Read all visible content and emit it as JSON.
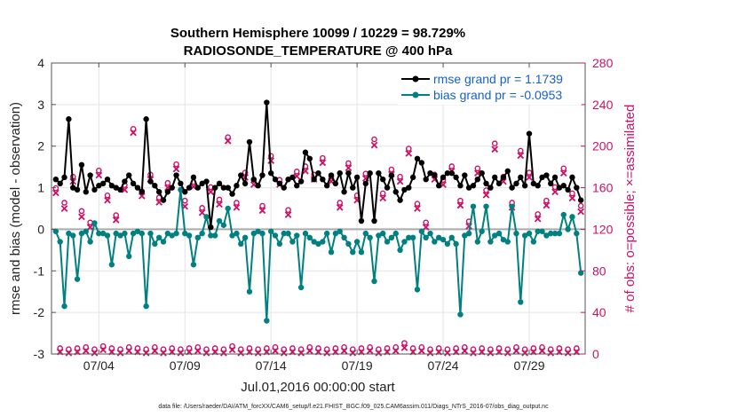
{
  "chart_data": {
    "type": "line",
    "title": "Southern Hemisphere 10099 / 10229 = 98.729%",
    "subtitle": "RADIOSONDE_TEMPERATURE @ 400 hPa",
    "xlabel": "Jul.01,2016 00:00:00 start",
    "ylabel": "rmse and bias (model - observation)",
    "ylabel_right": "# of obs: o=possible; ×=assimilated",
    "footer": "data file: /Users/raeder/DAI/ATM_forcXX/CAM6_setup/f.e21.FHIST_BGC.f09_025.CAM6assim.011/Diags_NTrS_2016-07/obs_diag_output.nc",
    "xlim": [
      0.75,
      31.75
    ],
    "ylim": [
      -3,
      4
    ],
    "ylim_right": [
      0,
      280
    ],
    "x_ticks": [
      3.5,
      8.5,
      13.5,
      18.5,
      23.5,
      28.5
    ],
    "x_tick_labels": [
      "07/04",
      "07/09",
      "07/14",
      "07/19",
      "07/24",
      "07/29"
    ],
    "y_ticks": [
      -3,
      -2,
      -1,
      0,
      1,
      2,
      3,
      4
    ],
    "y_ticks_right": [
      0,
      40,
      80,
      120,
      160,
      200,
      240,
      280
    ],
    "grid": true,
    "legend_position": "top-right",
    "colors": {
      "rmse": "#000000",
      "bias": "#008080",
      "obs": "#cc1166",
      "zero": "#aaaaaa"
    },
    "series": [
      {
        "name": "rmse grand pr = 1.1739",
        "axis": "left",
        "x": [
          1.0,
          1.25,
          1.5,
          1.75,
          2.0,
          2.25,
          2.5,
          2.75,
          3.0,
          3.25,
          3.5,
          3.75,
          4.0,
          4.25,
          4.5,
          4.75,
          5.0,
          5.25,
          5.5,
          5.75,
          6.0,
          6.25,
          6.5,
          6.75,
          7.0,
          7.25,
          7.5,
          7.75,
          8.0,
          8.25,
          8.5,
          8.75,
          9.0,
          9.25,
          9.5,
          9.75,
          10.0,
          10.25,
          10.5,
          10.75,
          11.0,
          11.25,
          11.5,
          11.75,
          12.0,
          12.25,
          12.5,
          12.75,
          13.0,
          13.25,
          13.5,
          13.75,
          14.0,
          14.25,
          14.5,
          14.75,
          15.0,
          15.25,
          15.5,
          15.75,
          16.0,
          16.25,
          16.5,
          16.75,
          17.0,
          17.25,
          17.5,
          17.75,
          18.0,
          18.25,
          18.5,
          18.75,
          19.0,
          19.25,
          19.5,
          19.75,
          20.0,
          20.25,
          20.5,
          20.75,
          21.0,
          21.25,
          21.5,
          21.75,
          22.0,
          22.25,
          22.5,
          22.75,
          23.0,
          23.25,
          23.5,
          23.75,
          24.0,
          24.25,
          24.5,
          24.75,
          25.0,
          25.25,
          25.5,
          25.75,
          26.0,
          26.25,
          26.5,
          26.75,
          27.0,
          27.25,
          27.5,
          27.75,
          28.0,
          28.25,
          28.5,
          28.75,
          29.0,
          29.25,
          29.5,
          29.75,
          30.0,
          30.25,
          30.5,
          30.75,
          31.0,
          31.25,
          31.5
        ],
        "values": [
          1.2,
          1.1,
          1.25,
          2.65,
          1.0,
          0.95,
          1.55,
          0.9,
          1.3,
          0.95,
          1.05,
          1.1,
          1.2,
          1.05,
          1.0,
          0.95,
          1.15,
          1.3,
          1.1,
          1.0,
          0.9,
          2.65,
          1.15,
          1.05,
          0.9,
          0.7,
          0.9,
          1.0,
          1.3,
          1.1,
          0.9,
          1.0,
          1.25,
          1.0,
          1.1,
          1.15,
          0.05,
          1.0,
          1.1,
          1.0,
          1.0,
          0.85,
          1.05,
          1.3,
          1.1,
          2.1,
          1.2,
          1.05,
          1.3,
          3.05,
          1.35,
          1.2,
          1.1,
          1.0,
          1.2,
          1.25,
          1.05,
          1.15,
          1.85,
          1.7,
          1.2,
          1.35,
          1.2,
          1.05,
          1.3,
          1.1,
          1.35,
          0.9,
          1.35,
          1.0,
          1.25,
          0.2,
          1.1,
          1.35,
          0.2,
          1.35,
          1.2,
          1.0,
          1.3,
          0.9,
          0.7,
          0.95,
          1.0,
          1.25,
          1.7,
          1.6,
          1.2,
          1.35,
          1.3,
          1.05,
          1.25,
          1.35,
          1.35,
          1.25,
          1.05,
          1.3,
          1.0,
          1.05,
          1.2,
          1.35,
          1.1,
          1.0,
          1.25,
          1.1,
          1.25,
          1.4,
          1.0,
          1.1,
          1.25,
          1.05,
          2.3,
          1.1,
          1.05,
          1.25,
          1.3,
          1.1,
          1.25,
          1.0,
          1.05,
          0.95,
          1.25,
          1.0,
          0.7
        ]
      },
      {
        "name": "bias grand pr = -0.0953",
        "axis": "left",
        "x": [
          1.0,
          1.25,
          1.5,
          1.75,
          2.0,
          2.25,
          2.5,
          2.75,
          3.0,
          3.25,
          3.5,
          3.75,
          4.0,
          4.25,
          4.5,
          4.75,
          5.0,
          5.25,
          5.5,
          5.75,
          6.0,
          6.25,
          6.5,
          6.75,
          7.0,
          7.25,
          7.5,
          7.75,
          8.0,
          8.25,
          8.5,
          8.75,
          9.0,
          9.25,
          9.5,
          9.75,
          10.0,
          10.25,
          10.5,
          10.75,
          11.0,
          11.25,
          11.5,
          11.75,
          12.0,
          12.25,
          12.5,
          12.75,
          13.0,
          13.25,
          13.5,
          13.75,
          14.0,
          14.25,
          14.5,
          14.75,
          15.0,
          15.25,
          15.5,
          15.75,
          16.0,
          16.25,
          16.5,
          16.75,
          17.0,
          17.25,
          17.5,
          17.75,
          18.0,
          18.25,
          18.5,
          18.75,
          19.0,
          19.25,
          19.5,
          19.75,
          20.0,
          20.25,
          20.5,
          20.75,
          21.0,
          21.25,
          21.5,
          21.75,
          22.0,
          22.25,
          22.5,
          22.75,
          23.0,
          23.25,
          23.5,
          23.75,
          24.0,
          24.25,
          24.5,
          24.75,
          25.0,
          25.25,
          25.5,
          25.75,
          26.0,
          26.25,
          26.5,
          26.75,
          27.0,
          27.25,
          27.5,
          27.75,
          28.0,
          28.25,
          28.5,
          28.75,
          29.0,
          29.25,
          29.5,
          29.75,
          30.0,
          30.25,
          30.5,
          30.75,
          31.0,
          31.25,
          31.5
        ],
        "values": [
          -0.05,
          -0.3,
          -1.85,
          -0.1,
          -0.15,
          -1.2,
          -0.1,
          -0.05,
          -0.3,
          0.15,
          -0.1,
          -0.1,
          -0.15,
          -0.85,
          -0.1,
          -0.15,
          -0.1,
          -0.65,
          -0.1,
          -0.05,
          -0.1,
          -1.85,
          -0.1,
          -0.35,
          -0.2,
          -0.3,
          -0.1,
          -0.15,
          -0.1,
          0.95,
          -0.1,
          -0.15,
          -0.85,
          -0.2,
          -0.1,
          0.3,
          -0.15,
          -0.15,
          0.2,
          0.1,
          0.5,
          -0.15,
          -0.1,
          -0.35,
          -0.2,
          -1.5,
          -0.1,
          -0.05,
          -0.1,
          -2.2,
          -0.05,
          -0.15,
          -0.35,
          -0.1,
          -0.1,
          -0.3,
          -0.15,
          -1.4,
          -0.1,
          -0.2,
          -0.3,
          -0.35,
          -0.3,
          -0.1,
          -0.55,
          -0.1,
          -0.05,
          -0.2,
          -0.35,
          -0.55,
          -0.3,
          -0.55,
          -0.1,
          -0.2,
          -1.25,
          -0.15,
          -0.1,
          -0.3,
          -0.2,
          -0.1,
          -0.5,
          -0.3,
          -0.2,
          -0.2,
          -1.45,
          -0.05,
          -0.2,
          -0.1,
          -0.3,
          -0.2,
          -0.25,
          -0.35,
          -0.2,
          -0.35,
          -2.05,
          -0.15,
          -0.1,
          0.55,
          -0.3,
          -0.05,
          0.55,
          -0.3,
          -0.15,
          -0.1,
          -0.25,
          -0.3,
          0.55,
          -0.1,
          -1.75,
          -0.15,
          -0.1,
          -0.3,
          -0.05,
          -0.05,
          -0.15,
          -0.1,
          -0.1,
          -0.1,
          0.35,
          0.0,
          0.3,
          -0.1,
          -1.05
        ]
      },
      {
        "name": "obs possible",
        "axis": "right",
        "marker": "o",
        "x": [
          1.0,
          1.25,
          1.5,
          1.75,
          2.0,
          2.25,
          2.5,
          2.75,
          3.0,
          3.25,
          3.5,
          3.75,
          4.0,
          4.25,
          4.5,
          4.75,
          5.0,
          5.25,
          5.5,
          5.75,
          6.0,
          6.25,
          6.5,
          6.75,
          7.0,
          7.25,
          7.5,
          7.75,
          8.0,
          8.25,
          8.5,
          8.75,
          9.0,
          9.25,
          9.5,
          9.75,
          10.0,
          10.25,
          10.5,
          10.75,
          11.0,
          11.25,
          11.5,
          11.75,
          12.0,
          12.25,
          12.5,
          12.75,
          13.0,
          13.25,
          13.5,
          13.75,
          14.0,
          14.25,
          14.5,
          14.75,
          15.0,
          15.25,
          15.5,
          15.75,
          16.0,
          16.25,
          16.5,
          16.75,
          17.0,
          17.25,
          17.5,
          17.75,
          18.0,
          18.25,
          18.5,
          18.75,
          19.0,
          19.25,
          19.5,
          19.75,
          20.0,
          20.25,
          20.5,
          20.75,
          21.0,
          21.25,
          21.5,
          21.75,
          22.0,
          22.25,
          22.5,
          22.75,
          23.0,
          23.25,
          23.5,
          23.75,
          24.0,
          24.25,
          24.5,
          24.75,
          25.0,
          25.25,
          25.5,
          25.75,
          26.0,
          26.25,
          26.5,
          26.75,
          27.0,
          27.25,
          27.5,
          27.75,
          28.0,
          28.25,
          28.5,
          28.75,
          29.0,
          29.25,
          29.5,
          29.75,
          30.0,
          30.25,
          30.5,
          30.75,
          31.0,
          31.25,
          31.5
        ],
        "values": [
          157,
          3,
          143,
          2,
          168,
          3,
          135,
          4,
          124,
          2,
          174,
          5,
          150,
          3,
          131,
          2,
          160,
          4,
          214,
          3,
          154,
          2,
          170,
          4,
          148,
          2,
          162,
          3,
          180,
          2,
          145,
          3,
          163,
          4,
          138,
          2,
          158,
          3,
          146,
          2,
          206,
          5,
          143,
          2,
          172,
          3,
          165,
          2,
          140,
          3,
          188,
          4,
          165,
          2,
          136,
          3,
          173,
          2,
          178,
          4,
          170,
          3,
          186,
          2,
          168,
          3,
          143,
          4,
          181,
          2,
          150,
          3,
          171,
          4,
          204,
          2,
          152,
          3,
          175,
          4,
          168,
          8,
          195,
          3,
          142,
          4,
          124,
          2,
          170,
          3,
          165,
          2,
          178,
          3,
          145,
          4,
          125,
          2,
          176,
          3,
          155,
          2,
          200,
          3,
          168,
          2,
          143,
          4,
          193,
          2,
          172,
          3,
          132,
          4,
          145,
          2,
          158,
          3,
          176,
          2,
          152,
          3,
          140
        ]
      },
      {
        "name": "obs assimilated",
        "axis": "right",
        "marker": "×",
        "x": [
          1.0,
          1.25,
          1.5,
          1.75,
          2.0,
          2.25,
          2.5,
          2.75,
          3.0,
          3.25,
          3.5,
          3.75,
          4.0,
          4.25,
          4.5,
          4.75,
          5.0,
          5.25,
          5.5,
          5.75,
          6.0,
          6.25,
          6.5,
          6.75,
          7.0,
          7.25,
          7.5,
          7.75,
          8.0,
          8.25,
          8.5,
          8.75,
          9.0,
          9.25,
          9.5,
          9.75,
          10.0,
          10.25,
          10.5,
          10.75,
          11.0,
          11.25,
          11.5,
          11.75,
          12.0,
          12.25,
          12.5,
          12.75,
          13.0,
          13.25,
          13.5,
          13.75,
          14.0,
          14.25,
          14.5,
          14.75,
          15.0,
          15.25,
          15.5,
          15.75,
          16.0,
          16.25,
          16.5,
          16.75,
          17.0,
          17.25,
          17.5,
          17.75,
          18.0,
          18.25,
          18.5,
          18.75,
          19.0,
          19.25,
          19.5,
          19.75,
          20.0,
          20.25,
          20.5,
          20.75,
          21.0,
          21.25,
          21.5,
          21.75,
          22.0,
          22.25,
          22.5,
          22.75,
          23.0,
          23.25,
          23.5,
          23.75,
          24.0,
          24.25,
          24.5,
          24.75,
          25.0,
          25.25,
          25.5,
          25.75,
          26.0,
          26.25,
          26.5,
          26.75,
          27.0,
          27.25,
          27.5,
          27.75,
          28.0,
          28.25,
          28.5,
          28.75,
          29.0,
          29.25,
          29.5,
          29.75,
          30.0,
          30.25,
          30.5,
          30.75,
          31.0,
          31.25,
          31.5
        ],
        "values": [
          155,
          2,
          140,
          1,
          166,
          2,
          132,
          3,
          122,
          1,
          172,
          4,
          148,
          2,
          129,
          1,
          158,
          3,
          213,
          2,
          152,
          1,
          168,
          3,
          146,
          1,
          160,
          2,
          178,
          1,
          142,
          2,
          161,
          3,
          136,
          1,
          156,
          2,
          144,
          1,
          205,
          4,
          141,
          1,
          170,
          2,
          163,
          1,
          138,
          2,
          186,
          3,
          163,
          1,
          134,
          2,
          171,
          1,
          176,
          3,
          168,
          2,
          184,
          1,
          166,
          2,
          141,
          3,
          179,
          1,
          148,
          2,
          169,
          3,
          201,
          1,
          150,
          2,
          173,
          3,
          166,
          6,
          193,
          2,
          140,
          3,
          122,
          1,
          168,
          2,
          163,
          1,
          176,
          2,
          143,
          3,
          123,
          1,
          174,
          2,
          153,
          1,
          197,
          2,
          166,
          1,
          141,
          3,
          191,
          1,
          170,
          2,
          130,
          3,
          143,
          1,
          156,
          2,
          174,
          1,
          150,
          2,
          137
        ]
      }
    ]
  }
}
